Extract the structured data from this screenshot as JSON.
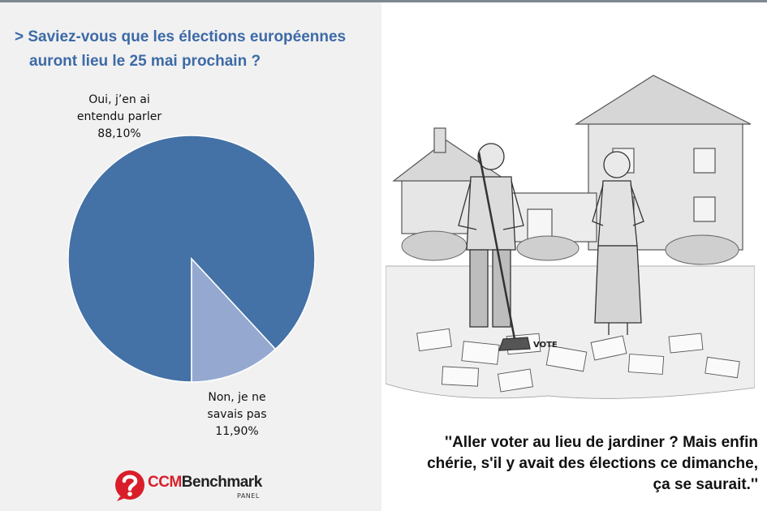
{
  "title": {
    "line1": "> Saviez-vous que les élections européennes",
    "line2": "auront lieu le 25 mai prochain ?"
  },
  "chart_data": {
    "type": "pie",
    "title": "> Saviez-vous que les élections européennes auront lieu le 25 mai prochain ?",
    "slices": [
      {
        "label_lines": [
          "Oui, j’en ai",
          "entendu parler"
        ],
        "value": 88.1,
        "value_label": "88,10%",
        "color": "#4471a6"
      },
      {
        "label_lines": [
          "Non, je ne",
          "savais pas"
        ],
        "value": 11.9,
        "value_label": "11,90%",
        "color": "#95a9d0"
      }
    ]
  },
  "logo": {
    "brand_ccm": "CCM",
    "brand_name": "Benchmark",
    "sub": "PANEL",
    "color": "#d91e2a"
  },
  "cartoon": {
    "sign_text": "VOTE"
  },
  "caption": {
    "line1": "''Aller voter au lieu de jardiner ? Mais enfin",
    "line2": "chérie, s'il y avait des élections ce dimanche,",
    "line3": "ça se saurait.''"
  }
}
